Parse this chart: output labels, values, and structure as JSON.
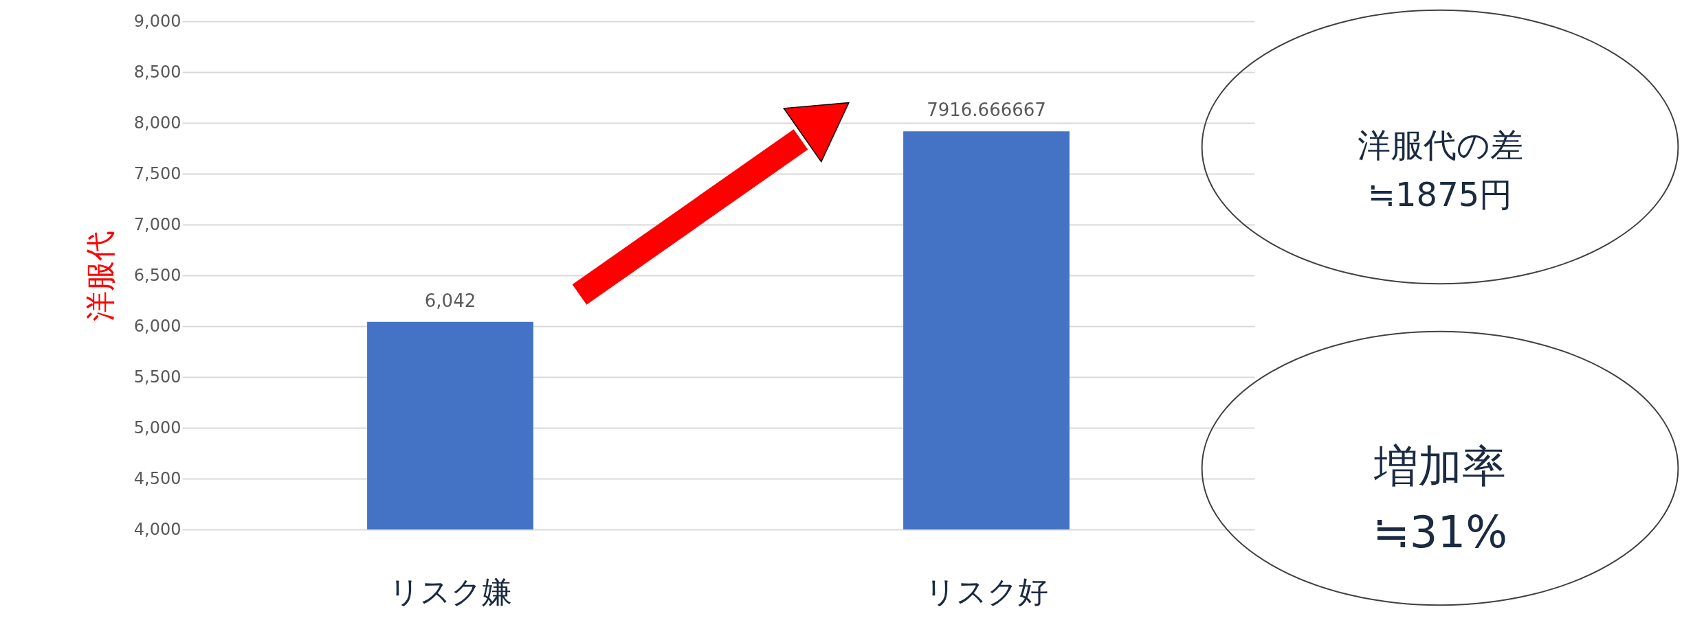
{
  "chart_data": {
    "type": "bar",
    "ylabel": "洋服代",
    "categories": [
      "リスク嫌",
      "リスク好"
    ],
    "values": [
      6042,
      7916.666667
    ],
    "color": "#4472c4",
    "value_labels": [
      "6,042",
      "7916.666667"
    ],
    "ylim": [
      4000,
      9000
    ],
    "yticks": [
      {
        "value": 4000,
        "label": "4,000"
      },
      {
        "value": 4500,
        "label": "4,500"
      },
      {
        "value": 5000,
        "label": "5,000"
      },
      {
        "value": 5500,
        "label": "5,500"
      },
      {
        "value": 6000,
        "label": "6,000"
      },
      {
        "value": 6500,
        "label": "6,500"
      },
      {
        "value": 7000,
        "label": "7,000"
      },
      {
        "value": 7500,
        "label": "7,500"
      },
      {
        "value": 8000,
        "label": "8,000"
      },
      {
        "value": 8500,
        "label": "8,500"
      },
      {
        "value": 9000,
        "label": "9,000"
      }
    ],
    "grid": "y",
    "annotations": [
      "洋服代の差\n≒1875円",
      "増加率\n≒31%"
    ]
  }
}
